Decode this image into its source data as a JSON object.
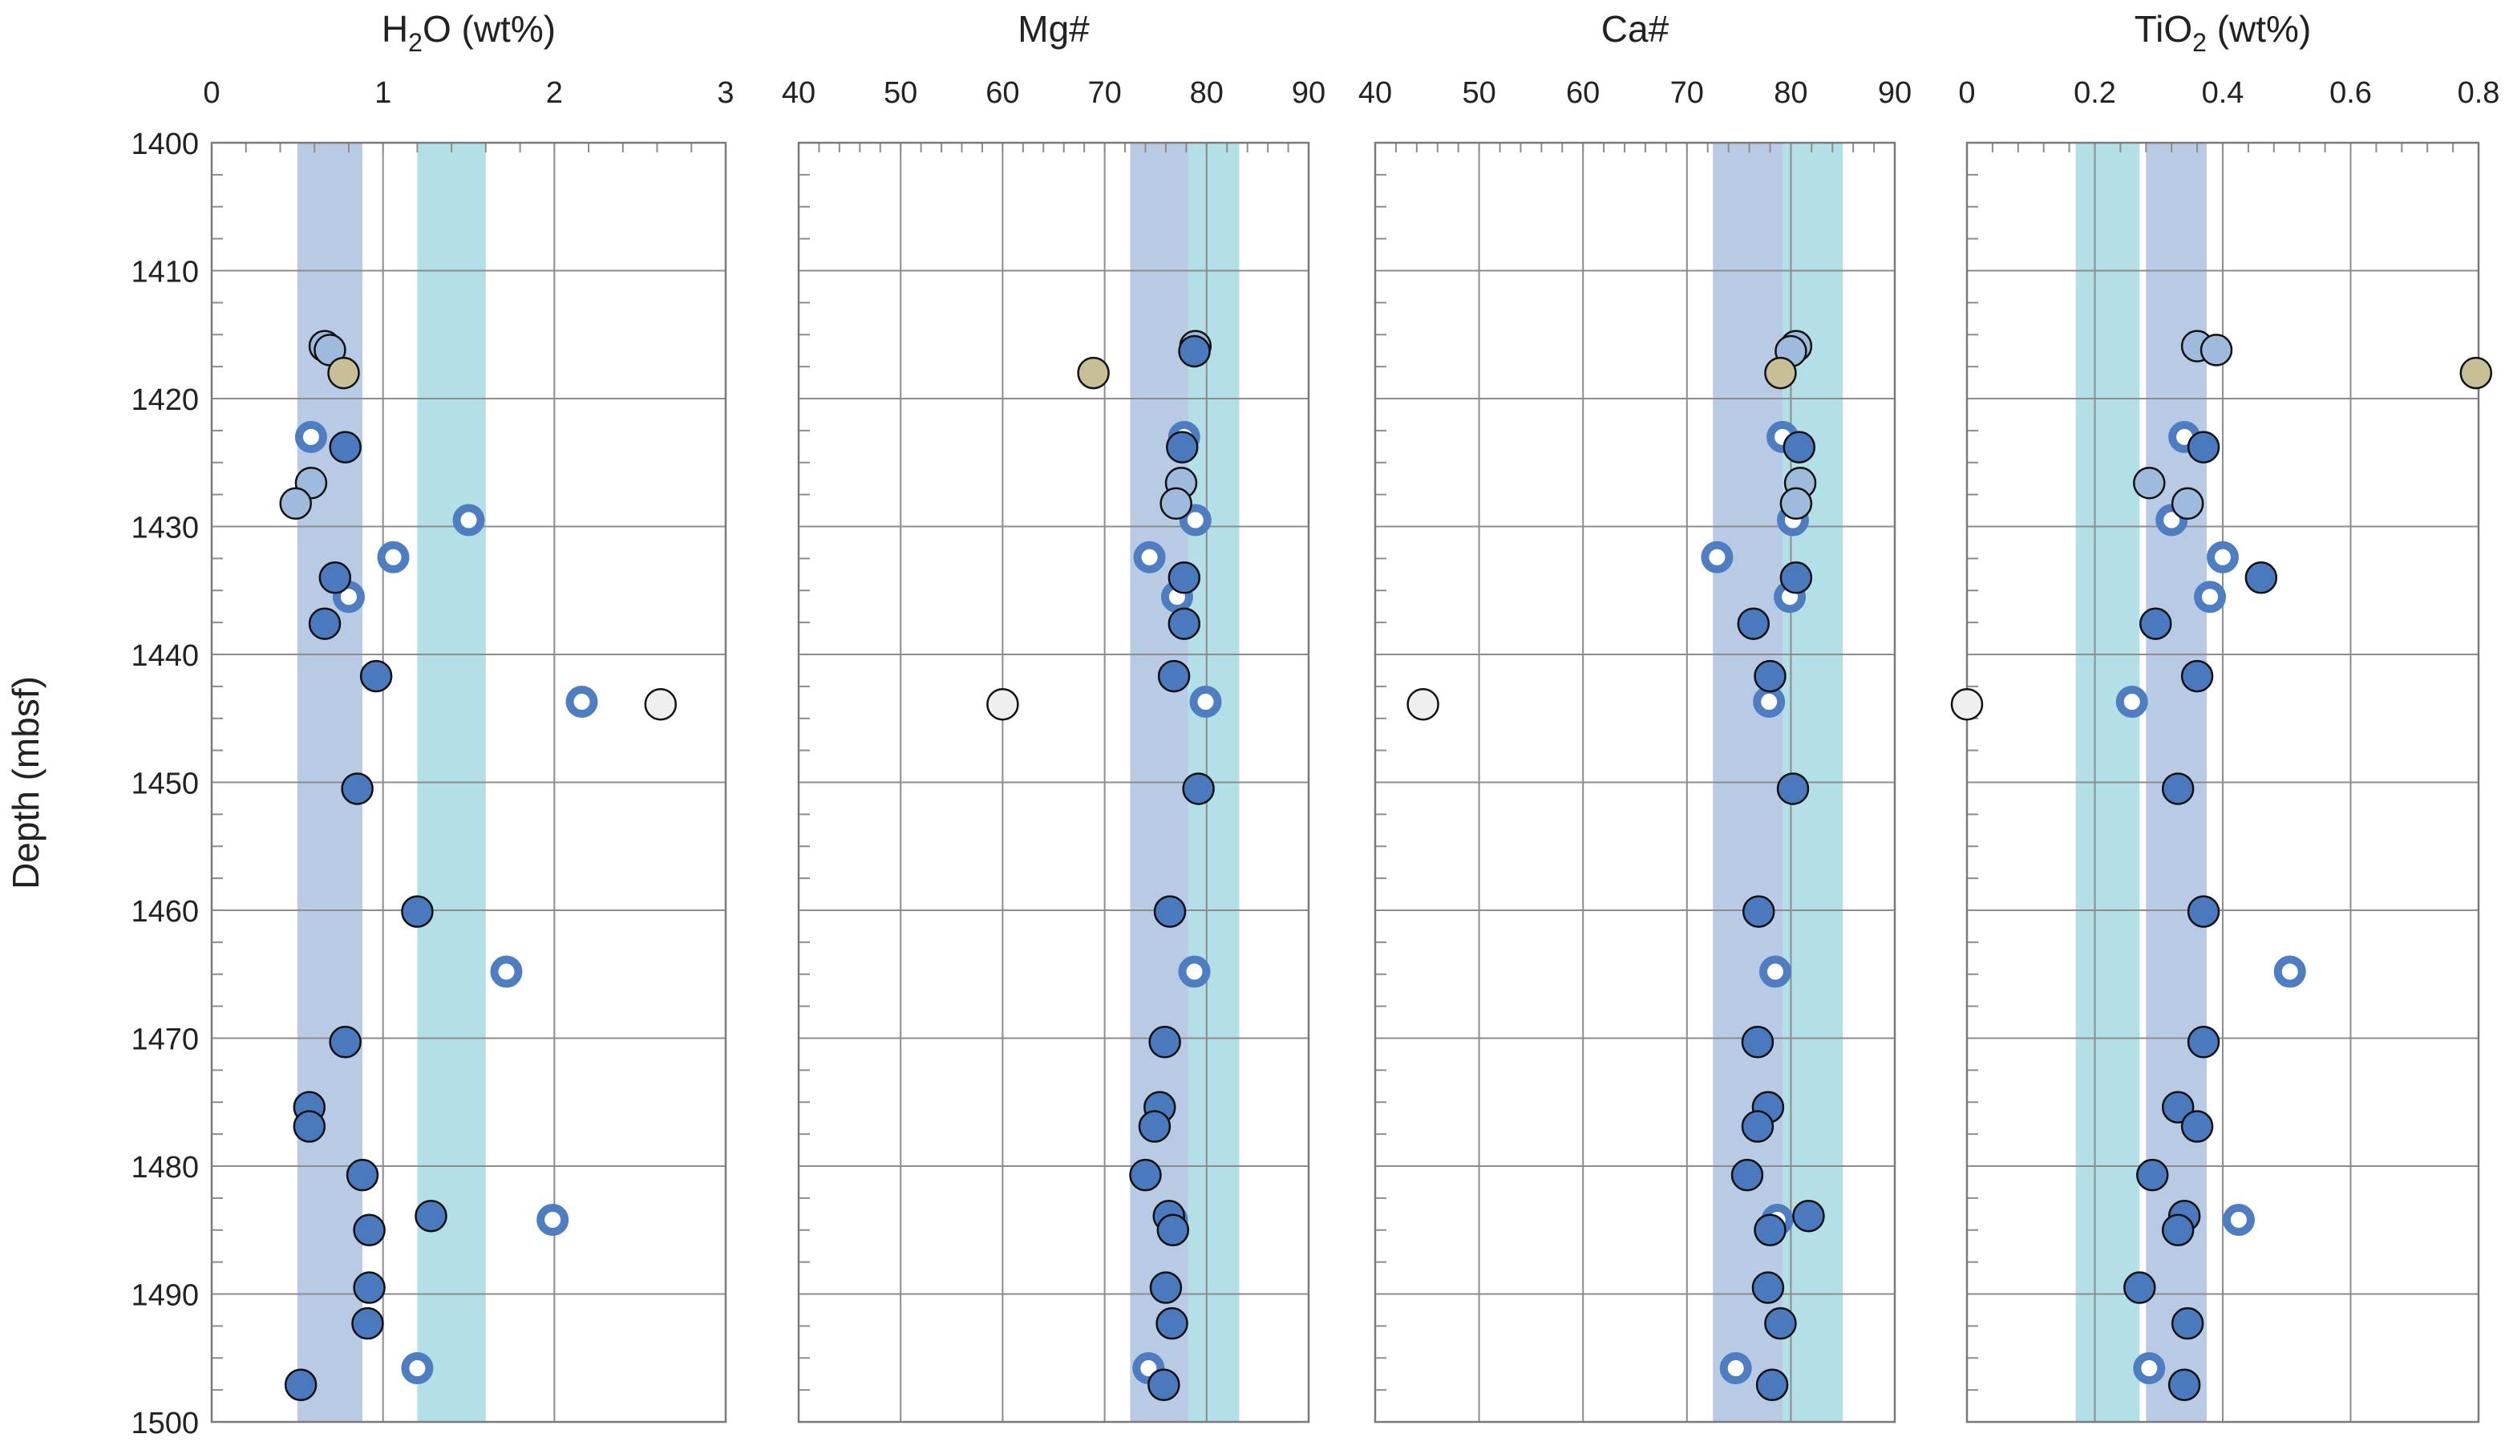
{
  "chart_data": {
    "type": "scatter",
    "shared_y": {
      "label": "Depth (mbsf)",
      "range": [
        1400,
        1500
      ],
      "reversed": true,
      "ticks": [
        "1400",
        "1410",
        "1420",
        "1430",
        "1440",
        "1450",
        "1460",
        "1470",
        "1480",
        "1490",
        "1500"
      ]
    },
    "colors": {
      "band_dark": "#b9cbe4",
      "band_light": "#b3dfe7",
      "filled_dark": "#4a79be",
      "filled_light": "#9ebbdd",
      "filled_tan": "#c9bf97",
      "filled_white": "#efefef",
      "ring_dark": "#4e7dc2",
      "ring_light": "#8fb3dd",
      "grid": "#8c8c8c"
    },
    "panels": [
      {
        "title": "H2O (wt%)",
        "title_parts": {
          "pre": "H",
          "sub": "2",
          "post": "O (wt%)"
        },
        "xlim": [
          0,
          3
        ],
        "xticks": [
          "0",
          "1",
          "2",
          "3"
        ],
        "bands": [
          {
            "from": 0.5,
            "to": 0.88,
            "color": "band_dark"
          },
          {
            "from": 1.2,
            "to": 1.6,
            "color": "band_light"
          }
        ],
        "points": [
          {
            "x": 0.66,
            "y": 1415.9,
            "style": "filled_light"
          },
          {
            "x": 0.69,
            "y": 1416.2,
            "style": "filled_light"
          },
          {
            "x": 0.77,
            "y": 1418.0,
            "style": "filled_tan"
          },
          {
            "x": 0.58,
            "y": 1423.0,
            "style": "ring_dark"
          },
          {
            "x": 0.78,
            "y": 1423.8,
            "style": "filled_dark"
          },
          {
            "x": 0.58,
            "y": 1426.6,
            "style": "filled_light"
          },
          {
            "x": 0.49,
            "y": 1428.2,
            "style": "filled_light"
          },
          {
            "x": 1.5,
            "y": 1429.5,
            "style": "ring_dark"
          },
          {
            "x": 1.06,
            "y": 1432.4,
            "style": "ring_dark"
          },
          {
            "x": 0.72,
            "y": 1434.0,
            "style": "filled_dark"
          },
          {
            "x": 0.8,
            "y": 1435.5,
            "style": "ring_dark"
          },
          {
            "x": 0.66,
            "y": 1437.6,
            "style": "filled_dark"
          },
          {
            "x": 0.96,
            "y": 1441.7,
            "style": "filled_dark"
          },
          {
            "x": 2.16,
            "y": 1443.7,
            "style": "ring_dark"
          },
          {
            "x": 2.62,
            "y": 1443.9,
            "style": "filled_white"
          },
          {
            "x": 0.85,
            "y": 1450.5,
            "style": "filled_dark"
          },
          {
            "x": 1.2,
            "y": 1460.1,
            "style": "filled_dark"
          },
          {
            "x": 1.72,
            "y": 1464.8,
            "style": "ring_dark"
          },
          {
            "x": 0.78,
            "y": 1470.3,
            "style": "filled_dark"
          },
          {
            "x": 0.57,
            "y": 1475.4,
            "style": "filled_dark"
          },
          {
            "x": 0.57,
            "y": 1476.9,
            "style": "filled_dark"
          },
          {
            "x": 0.88,
            "y": 1480.7,
            "style": "filled_dark"
          },
          {
            "x": 1.28,
            "y": 1483.9,
            "style": "filled_dark"
          },
          {
            "x": 1.99,
            "y": 1484.2,
            "style": "ring_dark"
          },
          {
            "x": 0.92,
            "y": 1485.0,
            "style": "filled_dark"
          },
          {
            "x": 0.92,
            "y": 1489.5,
            "style": "filled_dark"
          },
          {
            "x": 0.91,
            "y": 1492.3,
            "style": "filled_dark"
          },
          {
            "x": 1.2,
            "y": 1495.8,
            "style": "ring_dark"
          },
          {
            "x": 0.52,
            "y": 1497.1,
            "style": "filled_dark"
          }
        ]
      },
      {
        "title": "Mg#",
        "xlim": [
          40,
          90
        ],
        "xticks": [
          "40",
          "50",
          "60",
          "70",
          "80",
          "90"
        ],
        "bands": [
          {
            "from": 72.5,
            "to": 78.2,
            "color": "band_dark"
          },
          {
            "from": 78.2,
            "to": 83.2,
            "color": "band_light"
          }
        ],
        "points": [
          {
            "x": 78.9,
            "y": 1415.9,
            "style": "filled_light"
          },
          {
            "x": 78.8,
            "y": 1416.3,
            "style": "filled_dark"
          },
          {
            "x": 68.9,
            "y": 1418.0,
            "style": "filled_tan"
          },
          {
            "x": 77.8,
            "y": 1423.0,
            "style": "ring_dark"
          },
          {
            "x": 77.6,
            "y": 1423.8,
            "style": "filled_dark"
          },
          {
            "x": 77.5,
            "y": 1426.6,
            "style": "filled_light"
          },
          {
            "x": 77.0,
            "y": 1428.2,
            "style": "filled_light"
          },
          {
            "x": 78.9,
            "y": 1429.5,
            "style": "ring_dark"
          },
          {
            "x": 74.4,
            "y": 1432.4,
            "style": "ring_dark"
          },
          {
            "x": 77.8,
            "y": 1434.0,
            "style": "filled_dark"
          },
          {
            "x": 77.1,
            "y": 1435.5,
            "style": "ring_dark"
          },
          {
            "x": 77.8,
            "y": 1437.6,
            "style": "filled_dark"
          },
          {
            "x": 76.8,
            "y": 1441.7,
            "style": "filled_dark"
          },
          {
            "x": 79.9,
            "y": 1443.7,
            "style": "ring_dark"
          },
          {
            "x": 60.0,
            "y": 1443.9,
            "style": "filled_white"
          },
          {
            "x": 79.2,
            "y": 1450.5,
            "style": "filled_dark"
          },
          {
            "x": 76.4,
            "y": 1460.1,
            "style": "filled_dark"
          },
          {
            "x": 78.8,
            "y": 1464.8,
            "style": "ring_dark"
          },
          {
            "x": 75.9,
            "y": 1470.3,
            "style": "filled_dark"
          },
          {
            "x": 75.4,
            "y": 1475.4,
            "style": "filled_dark"
          },
          {
            "x": 74.9,
            "y": 1476.9,
            "style": "filled_dark"
          },
          {
            "x": 74.0,
            "y": 1480.7,
            "style": "filled_dark"
          },
          {
            "x": 76.3,
            "y": 1483.9,
            "style": "filled_dark"
          },
          {
            "x": 76.6,
            "y": 1484.2,
            "style": "ring_dark"
          },
          {
            "x": 76.7,
            "y": 1485.0,
            "style": "filled_dark"
          },
          {
            "x": 76.0,
            "y": 1489.5,
            "style": "filled_dark"
          },
          {
            "x": 76.6,
            "y": 1492.3,
            "style": "filled_dark"
          },
          {
            "x": 74.3,
            "y": 1495.8,
            "style": "ring_dark"
          },
          {
            "x": 75.8,
            "y": 1497.1,
            "style": "filled_dark"
          }
        ]
      },
      {
        "title": "Ca#",
        "xlim": [
          40,
          90
        ],
        "xticks": [
          "40",
          "50",
          "60",
          "70",
          "80",
          "90"
        ],
        "bands": [
          {
            "from": 72.5,
            "to": 79.2,
            "color": "band_dark"
          },
          {
            "from": 79.2,
            "to": 85.0,
            "color": "band_light"
          }
        ],
        "points": [
          {
            "x": 80.5,
            "y": 1415.9,
            "style": "filled_light"
          },
          {
            "x": 80.0,
            "y": 1416.3,
            "style": "filled_light"
          },
          {
            "x": 79.0,
            "y": 1418.0,
            "style": "filled_tan"
          },
          {
            "x": 79.2,
            "y": 1423.0,
            "style": "ring_dark"
          },
          {
            "x": 80.8,
            "y": 1423.8,
            "style": "filled_dark"
          },
          {
            "x": 80.9,
            "y": 1426.6,
            "style": "filled_light"
          },
          {
            "x": 80.5,
            "y": 1428.2,
            "style": "filled_light"
          },
          {
            "x": 80.2,
            "y": 1429.5,
            "style": "ring_dark"
          },
          {
            "x": 72.9,
            "y": 1432.4,
            "style": "ring_dark"
          },
          {
            "x": 80.5,
            "y": 1434.0,
            "style": "filled_dark"
          },
          {
            "x": 79.9,
            "y": 1435.5,
            "style": "ring_dark"
          },
          {
            "x": 76.4,
            "y": 1437.6,
            "style": "filled_dark"
          },
          {
            "x": 78.0,
            "y": 1441.7,
            "style": "filled_dark"
          },
          {
            "x": 77.9,
            "y": 1443.7,
            "style": "ring_dark"
          },
          {
            "x": 44.6,
            "y": 1443.9,
            "style": "filled_white"
          },
          {
            "x": 80.2,
            "y": 1450.5,
            "style": "filled_dark"
          },
          {
            "x": 76.9,
            "y": 1460.1,
            "style": "filled_dark"
          },
          {
            "x": 78.5,
            "y": 1464.8,
            "style": "ring_dark"
          },
          {
            "x": 76.8,
            "y": 1470.3,
            "style": "filled_dark"
          },
          {
            "x": 77.8,
            "y": 1475.4,
            "style": "filled_dark"
          },
          {
            "x": 76.8,
            "y": 1476.9,
            "style": "filled_dark"
          },
          {
            "x": 75.8,
            "y": 1480.7,
            "style": "filled_dark"
          },
          {
            "x": 81.7,
            "y": 1483.9,
            "style": "filled_dark"
          },
          {
            "x": 78.7,
            "y": 1484.2,
            "style": "ring_dark"
          },
          {
            "x": 78.0,
            "y": 1485.0,
            "style": "filled_dark"
          },
          {
            "x": 77.8,
            "y": 1489.5,
            "style": "filled_dark"
          },
          {
            "x": 79.0,
            "y": 1492.3,
            "style": "filled_dark"
          },
          {
            "x": 74.7,
            "y": 1495.8,
            "style": "ring_dark"
          },
          {
            "x": 78.2,
            "y": 1497.1,
            "style": "filled_dark"
          }
        ]
      },
      {
        "title": "TiO2 (wt%)",
        "title_parts": {
          "pre": "TiO",
          "sub": "2",
          "post": " (wt%)"
        },
        "xlim": [
          0,
          0.8
        ],
        "xticks": [
          "0",
          "0.2",
          "0.4",
          "0.6",
          "0.8"
        ],
        "bands": [
          {
            "from": 0.17,
            "to": 0.27,
            "color": "band_light"
          },
          {
            "from": 0.28,
            "to": 0.375,
            "color": "band_dark"
          }
        ],
        "points": [
          {
            "x": 0.36,
            "y": 1415.9,
            "style": "filled_light"
          },
          {
            "x": 0.39,
            "y": 1416.2,
            "style": "filled_light"
          },
          {
            "x": 0.796,
            "y": 1418.0,
            "style": "filled_tan"
          },
          {
            "x": 0.34,
            "y": 1423.0,
            "style": "ring_dark"
          },
          {
            "x": 0.37,
            "y": 1423.8,
            "style": "filled_dark"
          },
          {
            "x": 0.285,
            "y": 1426.6,
            "style": "filled_light"
          },
          {
            "x": 0.345,
            "y": 1428.2,
            "style": "filled_light"
          },
          {
            "x": 0.32,
            "y": 1429.5,
            "style": "ring_dark"
          },
          {
            "x": 0.4,
            "y": 1432.4,
            "style": "ring_dark"
          },
          {
            "x": 0.46,
            "y": 1434.0,
            "style": "filled_dark"
          },
          {
            "x": 0.38,
            "y": 1435.5,
            "style": "ring_dark"
          },
          {
            "x": 0.295,
            "y": 1437.6,
            "style": "filled_dark"
          },
          {
            "x": 0.36,
            "y": 1441.7,
            "style": "filled_dark"
          },
          {
            "x": 0.258,
            "y": 1443.7,
            "style": "ring_dark"
          },
          {
            "x": 0.0,
            "y": 1443.9,
            "style": "filled_white"
          },
          {
            "x": 0.33,
            "y": 1450.5,
            "style": "filled_dark"
          },
          {
            "x": 0.37,
            "y": 1460.1,
            "style": "filled_dark"
          },
          {
            "x": 0.505,
            "y": 1464.8,
            "style": "ring_dark"
          },
          {
            "x": 0.37,
            "y": 1470.3,
            "style": "filled_dark"
          },
          {
            "x": 0.33,
            "y": 1475.4,
            "style": "filled_dark"
          },
          {
            "x": 0.36,
            "y": 1476.9,
            "style": "filled_dark"
          },
          {
            "x": 0.29,
            "y": 1480.7,
            "style": "filled_dark"
          },
          {
            "x": 0.34,
            "y": 1483.9,
            "style": "filled_dark"
          },
          {
            "x": 0.425,
            "y": 1484.2,
            "style": "ring_dark"
          },
          {
            "x": 0.33,
            "y": 1485.0,
            "style": "filled_dark"
          },
          {
            "x": 0.27,
            "y": 1489.5,
            "style": "filled_dark"
          },
          {
            "x": 0.345,
            "y": 1492.3,
            "style": "filled_dark"
          },
          {
            "x": 0.285,
            "y": 1495.8,
            "style": "ring_dark"
          },
          {
            "x": 0.34,
            "y": 1497.1,
            "style": "filled_dark"
          }
        ]
      }
    ]
  }
}
